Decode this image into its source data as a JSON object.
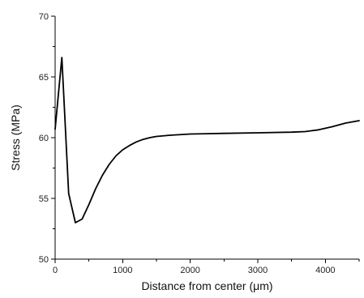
{
  "chart_data": {
    "type": "line",
    "title": "",
    "xlabel": "Distance from center (μm)",
    "ylabel": "Stress (MPa)",
    "xlim": [
      0,
      4500
    ],
    "ylim": [
      50,
      70
    ],
    "xticks": [
      0,
      1000,
      2000,
      3000,
      4000
    ],
    "yticks": [
      50,
      55,
      60,
      65,
      70
    ],
    "grid": false,
    "legend": "none",
    "series": [
      {
        "color": "#000000",
        "x": [
          0,
          100,
          200,
          300,
          400,
          500,
          600,
          700,
          800,
          900,
          1000,
          1100,
          1200,
          1300,
          1400,
          1500,
          1700,
          2000,
          2500,
          3000,
          3500,
          3700,
          3900,
          4100,
          4300,
          4500
        ],
        "y": [
          60.7,
          66.6,
          55.4,
          53.0,
          53.3,
          54.5,
          55.8,
          56.9,
          57.8,
          58.5,
          59.0,
          59.35,
          59.65,
          59.85,
          60.0,
          60.1,
          60.2,
          60.3,
          60.35,
          60.4,
          60.45,
          60.5,
          60.65,
          60.9,
          61.2,
          61.4
        ]
      }
    ]
  }
}
